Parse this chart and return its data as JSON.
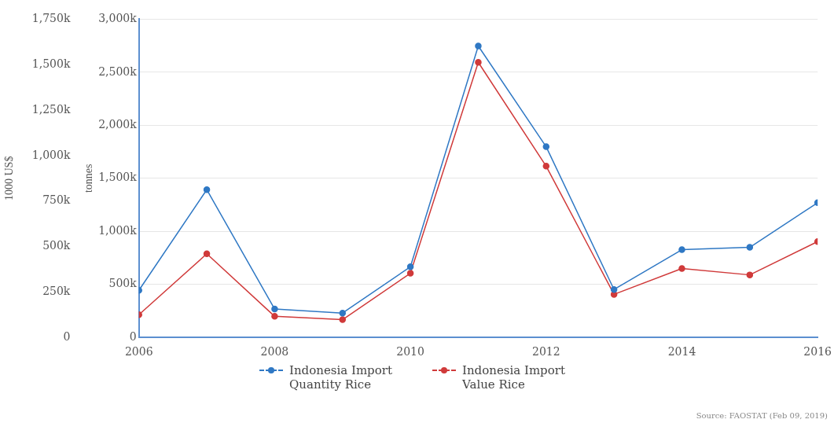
{
  "chart_data": {
    "type": "line",
    "ylabel": "tonnes",
    "y2label": "1000 US$",
    "x": [
      2006,
      2007,
      2008,
      2009,
      2010,
      2011,
      2012,
      2013,
      2014,
      2015,
      2016
    ],
    "series": [
      {
        "name": "Indonesia Import Quantity Rice",
        "color": "#2f78c4",
        "values": [
          444,
          1393,
          268,
          230,
          666,
          2747,
          1798,
          452,
          827,
          850,
          1270
        ]
      },
      {
        "name": "Indonesia Import Value Rice",
        "color": "#d03a3a",
        "axis": "y2",
        "values": [
          125,
          460,
          116,
          98,
          353,
          1513,
          942,
          237,
          379,
          344,
          527
        ]
      }
    ],
    "xlim": [
      2006,
      2016
    ],
    "xticks": [
      2006,
      2008,
      2010,
      2012,
      2014,
      2016
    ],
    "ylim": [
      0,
      3000
    ],
    "yticks": [
      {
        "value": 0,
        "label": "0"
      },
      {
        "value": 500,
        "label": "500k"
      },
      {
        "value": 1000,
        "label": "1,000k"
      },
      {
        "value": 1500,
        "label": "1,500k"
      },
      {
        "value": 2000,
        "label": "2,000k"
      },
      {
        "value": 2500,
        "label": "2,500k"
      },
      {
        "value": 3000,
        "label": "3,000k"
      }
    ],
    "y2lim": [
      0,
      1750
    ],
    "y2ticks": [
      {
        "value": 0,
        "label": "0"
      },
      {
        "value": 250,
        "label": "250k"
      },
      {
        "value": 500,
        "label": "500k"
      },
      {
        "value": 750,
        "label": "750k"
      },
      {
        "value": 1000,
        "label": "1,000k"
      },
      {
        "value": 1250,
        "label": "1,250k"
      },
      {
        "value": 1500,
        "label": "1,500k"
      },
      {
        "value": 1750,
        "label": "1,750k"
      }
    ],
    "grid": "y",
    "legend": "bottom",
    "marker": "circle",
    "line_style": "solid",
    "annotations": [
      "Source: FAOSTAT (Feb 09, 2019)"
    ]
  }
}
